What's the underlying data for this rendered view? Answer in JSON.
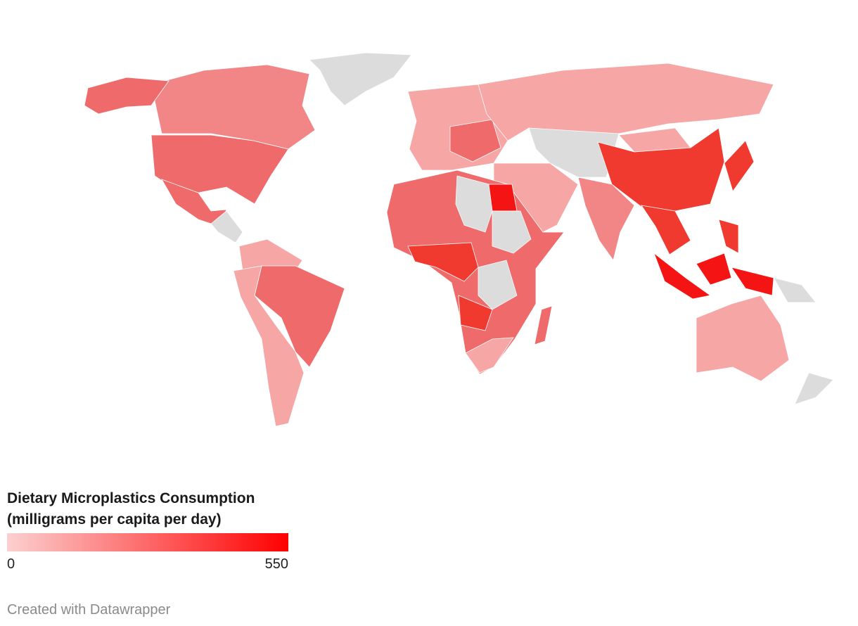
{
  "legend": {
    "title": "Dietary Microplastics Consumption",
    "subtitle": "(milligrams per capita per day)",
    "min": 0,
    "max": 550,
    "color_low": "#fcd0d0",
    "color_high": "#ff0000"
  },
  "footer": {
    "credit": "Created with Datawrapper"
  }
}
